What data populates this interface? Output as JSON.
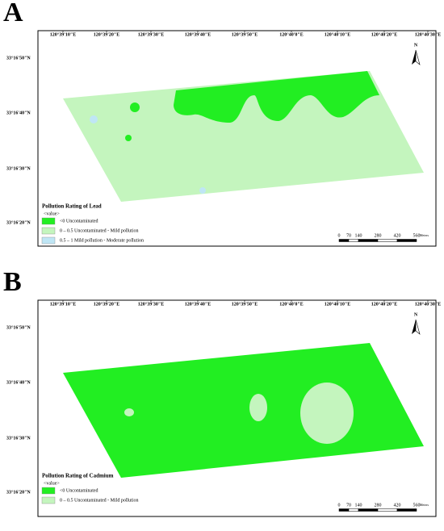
{
  "panels": [
    {
      "label": "A",
      "x_labels": [
        "120°39'10\"E",
        "120°39'20\"E",
        "120°39'30\"E",
        "120°39'40\"E",
        "120°39'50\"E",
        "120°40'0\"E",
        "120°40'10\"E",
        "120°40'20\"E",
        "120°40'30\"E"
      ],
      "y_labels": [
        "33°16'50\"N",
        "33°16'40\"N",
        "33°16'30\"N",
        "33°16'20\"N"
      ],
      "north": "N",
      "legend": {
        "title": "Pollution Rating of Lead",
        "subtitle": "<value>",
        "items": [
          {
            "text": "<0   Uncontaminated",
            "color": "#22ee22"
          },
          {
            "text": "0 – 0.5   Uncontaminated - Mild pollution",
            "color": "#c4f5be"
          },
          {
            "text": "0.5 – 1   Mild pollution - Moderate pollution",
            "color": "#bfe6f5"
          }
        ]
      },
      "scale": {
        "ticks": [
          0,
          70,
          140,
          280,
          420,
          560
        ],
        "unit": "Meters"
      }
    },
    {
      "label": "B",
      "x_labels": [
        "120°39'10\"E",
        "120°39'20\"E",
        "120°39'30\"E",
        "120°39'40\"E",
        "120°39'50\"E",
        "120°40'0\"E",
        "120°40'10\"E",
        "120°40'20\"E",
        "120°40'30\"E"
      ],
      "y_labels": [
        "33°16'50\"N",
        "33°16'40\"N",
        "33°16'30\"N",
        "33°16'20\"N"
      ],
      "north": "N",
      "legend": {
        "title": "Pollution Rating of Cadmium",
        "subtitle": "<value>",
        "items": [
          {
            "text": "<0   Uncontaminated",
            "color": "#22ee22"
          },
          {
            "text": "0 – 0.5   Uncontaminated - Mild pollution",
            "color": "#c4f5be"
          }
        ]
      },
      "scale": {
        "ticks": [
          0,
          70,
          140,
          280,
          420,
          560
        ],
        "unit": "Meters"
      }
    }
  ]
}
